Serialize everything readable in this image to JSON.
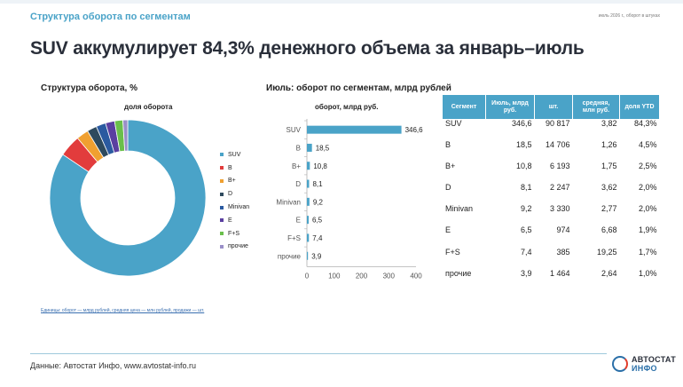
{
  "header": {
    "section_title": "Структура оборота по сегментам",
    "top_note": "июль 2026 г., оборот в штуках",
    "headline": "SUV аккумулирует 84,3% денежного объема за январь–июль"
  },
  "left_panel": {
    "title": "Структура оборота, %",
    "chart_caption": "доля оборота",
    "units_note": "Единицы: оборот — млрд рублей, средняя цена — млн рублей, продажи — шт."
  },
  "mid_panel": {
    "title": "Июль: оборот по сегментам, млрд рублей",
    "chart_caption": "оборот, млрд руб."
  },
  "colors": {
    "accent": "#4aa3c8",
    "slices": [
      "#4aa3c8",
      "#e23c3c",
      "#f0a030",
      "#2e4a5e",
      "#2a5aa0",
      "#5a3fa0",
      "#6abf4b",
      "#9a8fc8"
    ]
  },
  "chart_data": [
    {
      "type": "pie",
      "title": "доля оборота",
      "categories": [
        "SUV",
        "B",
        "B+",
        "D",
        "Minivan",
        "E",
        "F+S",
        "прочие"
      ],
      "values": [
        84.3,
        4.5,
        2.5,
        2.0,
        2.0,
        1.9,
        1.7,
        1.0
      ],
      "legend_position": "right"
    },
    {
      "type": "bar",
      "orientation": "horizontal",
      "title": "оборот, млрд руб.",
      "categories": [
        "SUV",
        "B",
        "B+",
        "D",
        "Minivan",
        "E",
        "F+S",
        "прочие"
      ],
      "values": [
        346.6,
        18.5,
        10.8,
        8.1,
        9.2,
        6.5,
        7.4,
        3.9
      ],
      "value_labels": [
        "346,6",
        "18,5",
        "10,8",
        "8,1",
        "9,2",
        "6,5",
        "7,4",
        "3,9"
      ],
      "x_ticks": [
        "0",
        "100",
        "200",
        "300",
        "400"
      ],
      "xlim": [
        0,
        400
      ]
    }
  ],
  "table": {
    "headers": [
      "Сегмент",
      "Июль, млрд руб.",
      "шт.",
      "средняя, млн руб.",
      "доля YTD"
    ],
    "rows": [
      [
        "SUV",
        "346,6",
        "90 817",
        "3,82",
        "84,3%"
      ],
      [
        "B",
        "18,5",
        "14 706",
        "1,26",
        "4,5%"
      ],
      [
        "B+",
        "10,8",
        "6 193",
        "1,75",
        "2,5%"
      ],
      [
        "D",
        "8,1",
        "2 247",
        "3,62",
        "2,0%"
      ],
      [
        "Minivan",
        "9,2",
        "3 330",
        "2,77",
        "2,0%"
      ],
      [
        "E",
        "6,5",
        "974",
        "6,68",
        "1,9%"
      ],
      [
        "F+S",
        "7,4",
        "385",
        "19,25",
        "1,7%"
      ],
      [
        "прочие",
        "3,9",
        "1 464",
        "2,64",
        "1,0%"
      ]
    ]
  },
  "footer": {
    "source": "Данные: Автостат Инфо, www.avtostat-info.ru",
    "logo_line1": "АВТОСТАТ",
    "logo_line2": "ИНФО"
  }
}
